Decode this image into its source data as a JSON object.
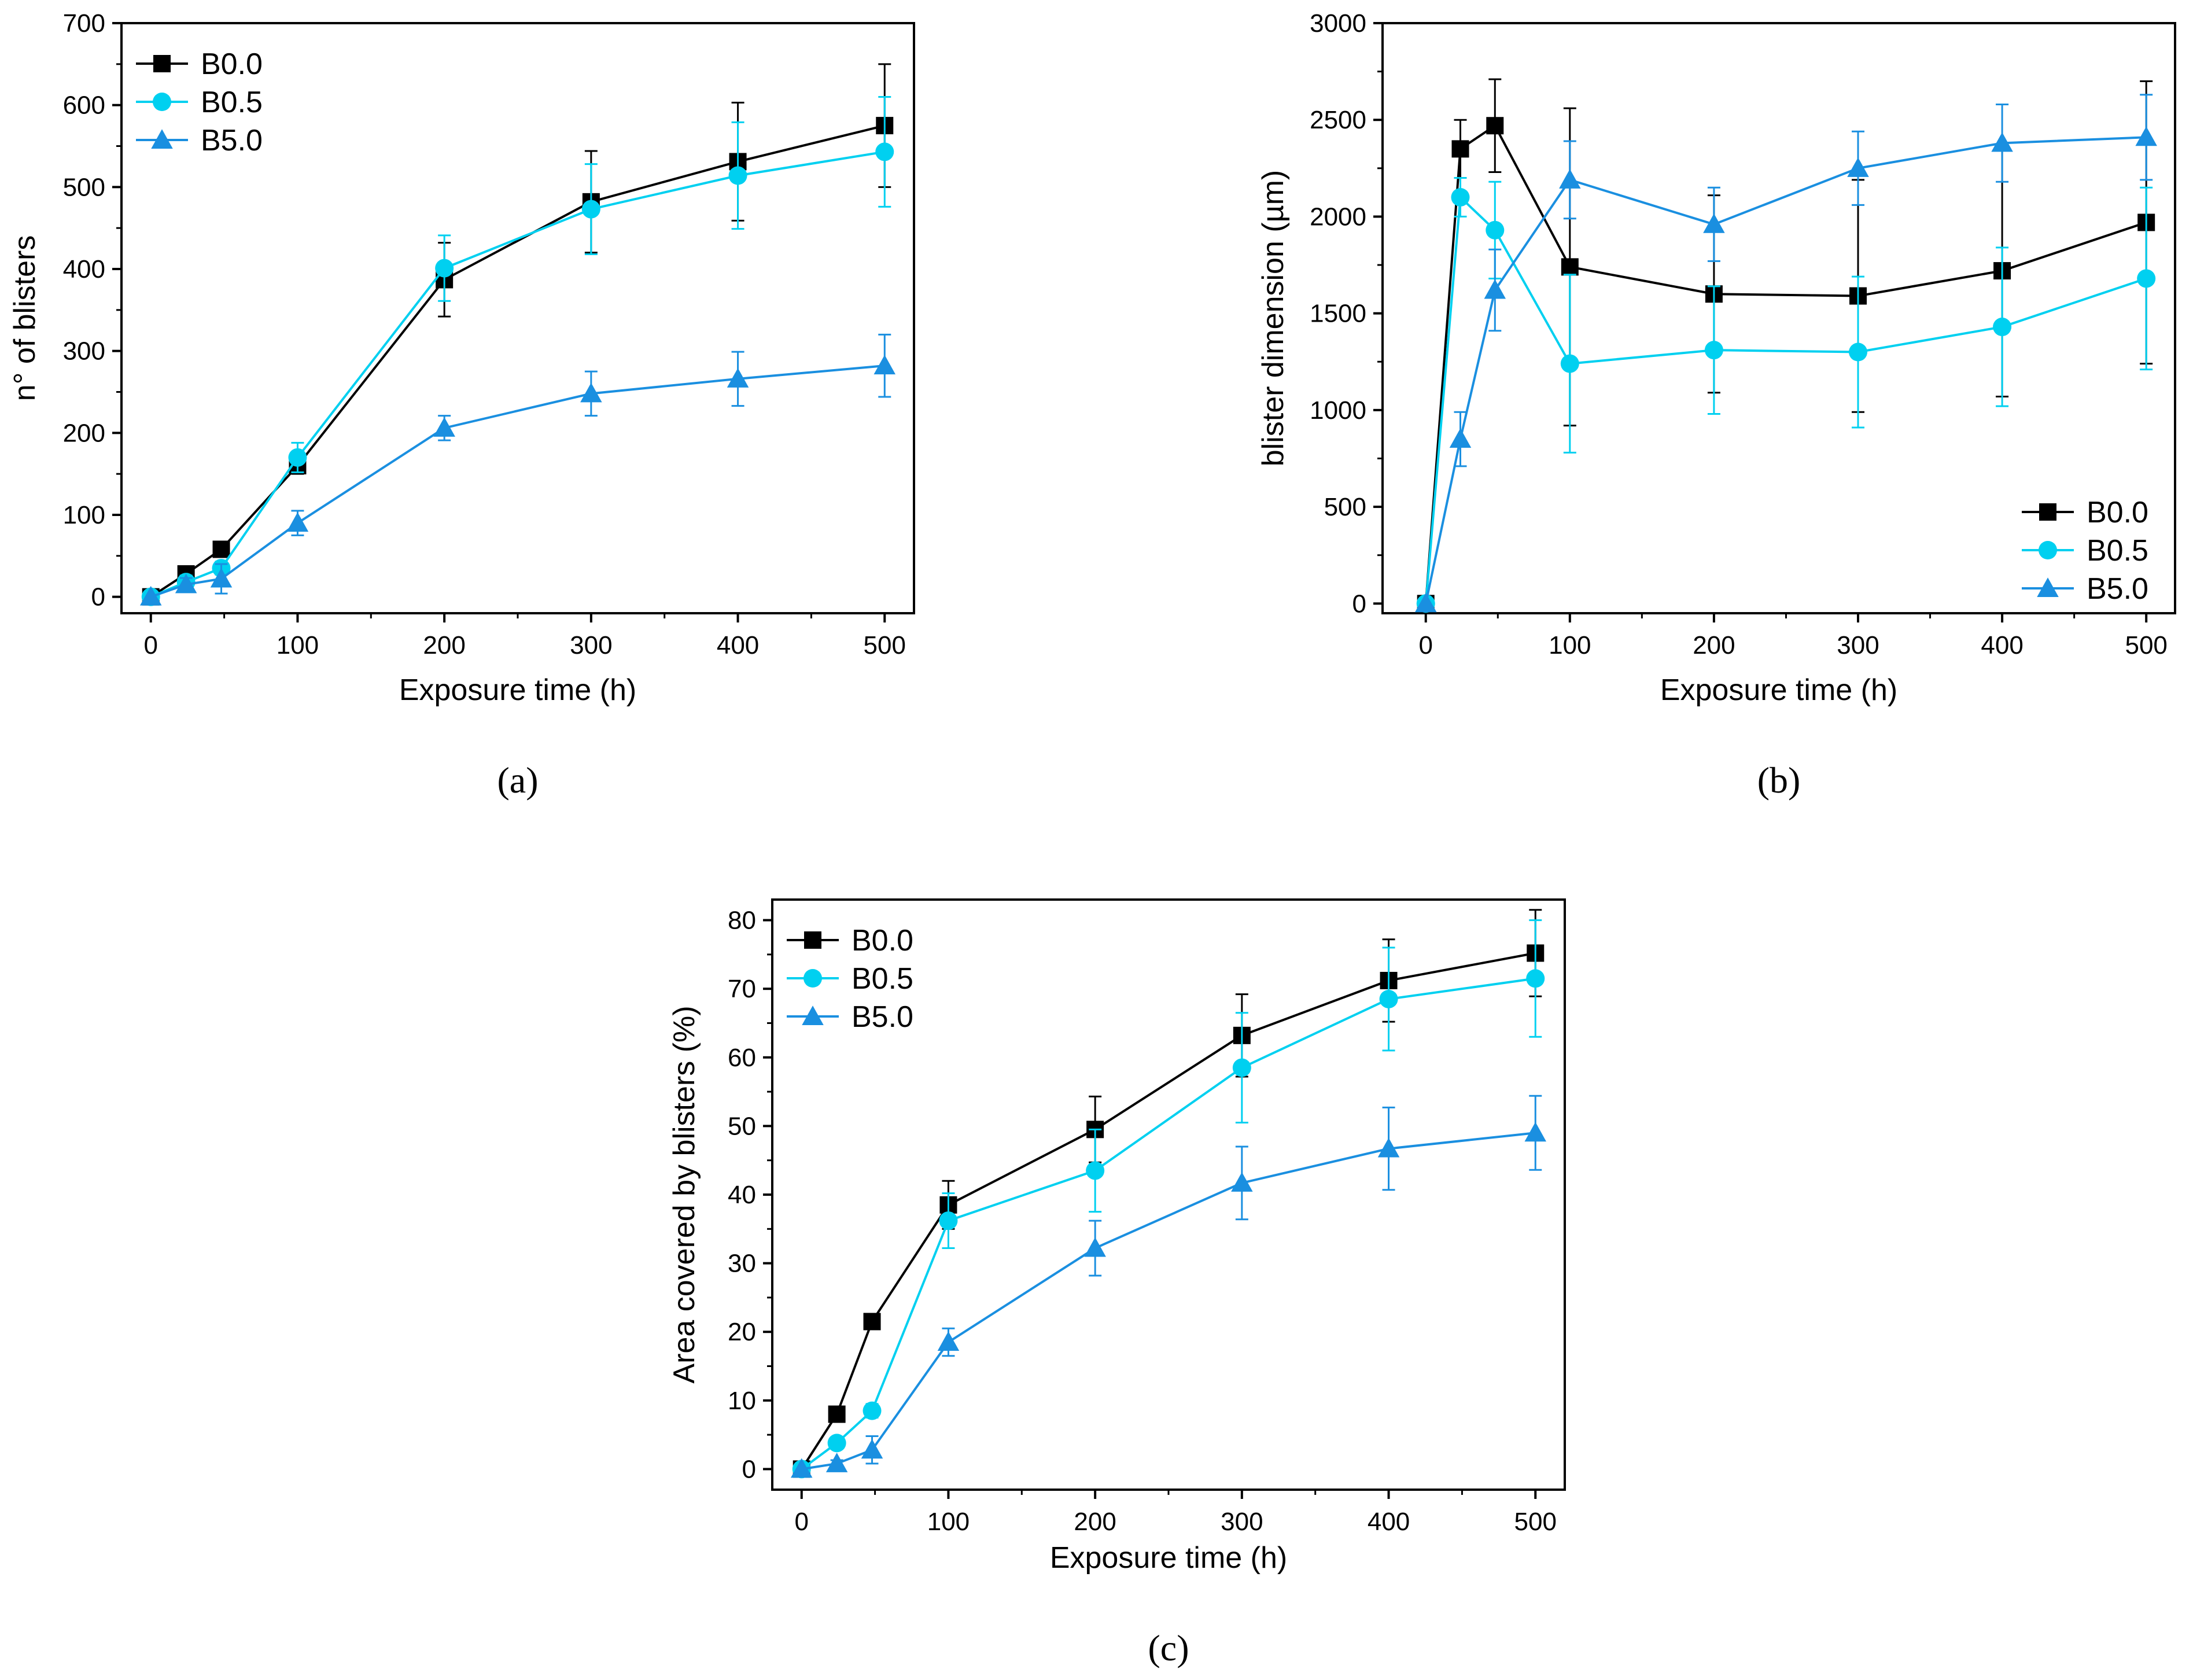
{
  "chart_data": [
    {
      "type": "line",
      "panel_label": "(a)",
      "panel_letter": "a",
      "xlabel": "Exposure time (h)",
      "ylabel": "n° of blisters",
      "xlim": [
        -20,
        520
      ],
      "ylim": [
        -20,
        700
      ],
      "xticks": [
        0,
        100,
        200,
        300,
        400,
        500
      ],
      "yticks": [
        0,
        100,
        200,
        300,
        400,
        500,
        600,
        700
      ],
      "legend_position": "top-left",
      "x": [
        0,
        24,
        48,
        100,
        200,
        300,
        400,
        500
      ],
      "series": [
        {
          "name": "B0.0",
          "marker": "square",
          "color": "#000000",
          "values": [
            0,
            28,
            58,
            160,
            387,
            482,
            531,
            575
          ],
          "errors": [
            0,
            8,
            8,
            10,
            45,
            62,
            72,
            75
          ]
        },
        {
          "name": "B0.5",
          "marker": "circle",
          "color": "#00d0f0",
          "values": [
            0,
            18,
            35,
            170,
            401,
            473,
            514,
            543
          ],
          "errors": [
            0,
            8,
            8,
            18,
            40,
            55,
            65,
            67
          ]
        },
        {
          "name": "B5.0",
          "marker": "triangle",
          "color": "#1a8fe0",
          "values": [
            0,
            15,
            22,
            90,
            206,
            248,
            266,
            282
          ],
          "errors": [
            0,
            8,
            18,
            15,
            15,
            27,
            33,
            38
          ]
        }
      ]
    },
    {
      "type": "line",
      "panel_label": "(b)",
      "panel_letter": "b",
      "xlabel": "Exposure time (h)",
      "ylabel": "blister dimension (µm)",
      "xlim": [
        -30,
        520
      ],
      "ylim": [
        -50,
        3000
      ],
      "xticks": [
        0,
        100,
        200,
        300,
        400,
        500
      ],
      "yticks": [
        0,
        500,
        1000,
        1500,
        2000,
        2500,
        3000
      ],
      "legend_position": "bottom-right",
      "x": [
        0,
        24,
        48,
        100,
        200,
        300,
        400,
        500
      ],
      "series": [
        {
          "name": "B0.0",
          "marker": "square",
          "color": "#000000",
          "values": [
            0,
            2350,
            2470,
            1740,
            1600,
            1590,
            1720,
            1970
          ],
          "errors": [
            0,
            150,
            240,
            820,
            510,
            600,
            650,
            730
          ]
        },
        {
          "name": "B0.5",
          "marker": "circle",
          "color": "#00d0f0",
          "values": [
            0,
            2100,
            1930,
            1240,
            1310,
            1300,
            1430,
            1680
          ],
          "errors": [
            0,
            100,
            250,
            460,
            330,
            390,
            410,
            470
          ]
        },
        {
          "name": "B5.0",
          "marker": "triangle",
          "color": "#1a8fe0",
          "values": [
            0,
            850,
            1620,
            2190,
            1960,
            2250,
            2380,
            2410
          ],
          "errors": [
            0,
            140,
            210,
            200,
            190,
            190,
            200,
            220
          ]
        }
      ]
    },
    {
      "type": "line",
      "panel_label": "(c)",
      "panel_letter": "c",
      "xlabel": "Exposure time (h)",
      "ylabel": "Area covered by blisters (%)",
      "xlim": [
        -20,
        520
      ],
      "ylim": [
        -3,
        83
      ],
      "xticks": [
        0,
        100,
        200,
        300,
        400,
        500
      ],
      "yticks": [
        0,
        10,
        20,
        30,
        40,
        50,
        60,
        70,
        80
      ],
      "legend_position": "top-left",
      "x": [
        0,
        24,
        48,
        100,
        200,
        300,
        400,
        500
      ],
      "series": [
        {
          "name": "B0.0",
          "marker": "square",
          "color": "#000000",
          "values": [
            0,
            8,
            21.5,
            38.5,
            49.5,
            63.2,
            71.2,
            75.2
          ],
          "errors": [
            0,
            0.5,
            0.8,
            3.5,
            4.8,
            6.0,
            6.0,
            6.3
          ]
        },
        {
          "name": "B0.5",
          "marker": "circle",
          "color": "#00d0f0",
          "values": [
            0,
            3.8,
            8.5,
            36.2,
            43.5,
            58.5,
            68.5,
            71.5
          ],
          "errors": [
            0,
            0.8,
            1.0,
            4.0,
            6.0,
            8.0,
            7.5,
            8.5
          ]
        },
        {
          "name": "B5.0",
          "marker": "triangle",
          "color": "#1a8fe0",
          "values": [
            0,
            0.8,
            2.8,
            18.5,
            32.2,
            41.7,
            46.7,
            49.0
          ],
          "errors": [
            0,
            0.5,
            2.0,
            2.0,
            4.0,
            5.3,
            6.0,
            5.4
          ]
        }
      ]
    }
  ]
}
